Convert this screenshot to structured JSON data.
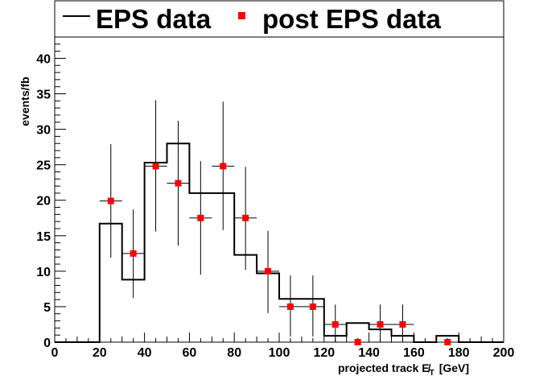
{
  "chart_data": {
    "type": "histogram",
    "xlabel": "projected track  E̸",
    "xlabel_sub": "T",
    "xlabel_unit": "[GeV]",
    "ylabel": "events/fb",
    "xlim": [
      0,
      200
    ],
    "ylim": [
      0,
      43
    ],
    "xticks": [
      "0",
      "20",
      "40",
      "60",
      "80",
      "100",
      "120",
      "140",
      "160",
      "180",
      "200"
    ],
    "yticks": [
      "0",
      "5",
      "10",
      "15",
      "20",
      "25",
      "30",
      "35",
      "40"
    ],
    "grid": false,
    "legend": {
      "position": "top",
      "entries": [
        {
          "label": "EPS data",
          "style": "line"
        },
        {
          "label": "post EPS data",
          "style": "marker"
        }
      ]
    },
    "series": [
      {
        "name": "EPS data",
        "style": "step",
        "color": "#000000",
        "bin_edges": [
          0,
          10,
          20,
          30,
          40,
          50,
          60,
          70,
          80,
          90,
          100,
          110,
          120,
          130,
          140,
          150,
          160,
          170,
          180,
          190,
          200
        ],
        "values": [
          0,
          0,
          16.7,
          8.8,
          25.3,
          28.0,
          21.0,
          21.0,
          12.3,
          9.7,
          6.1,
          6.1,
          0.9,
          2.7,
          1.8,
          0.9,
          0,
          0.9,
          0,
          0
        ]
      },
      {
        "name": "post EPS data",
        "style": "points",
        "color": "#ff0000",
        "points": [
          {
            "x": 25,
            "y": 19.9,
            "ylo": 11.9,
            "yhi": 27.9
          },
          {
            "x": 35,
            "y": 12.5,
            "ylo": 6.2,
            "yhi": 18.7
          },
          {
            "x": 45,
            "y": 24.8,
            "ylo": 15.6,
            "yhi": 34.1
          },
          {
            "x": 55,
            "y": 22.4,
            "ylo": 13.6,
            "yhi": 31.2
          },
          {
            "x": 65,
            "y": 17.5,
            "ylo": 9.5,
            "yhi": 25.5
          },
          {
            "x": 75,
            "y": 24.8,
            "ylo": 15.8,
            "yhi": 33.9
          },
          {
            "x": 85,
            "y": 17.5,
            "ylo": 10.2,
            "yhi": 24.7
          },
          {
            "x": 95,
            "y": 10.0,
            "ylo": 4.1,
            "yhi": 15.7
          },
          {
            "x": 105,
            "y": 5.0,
            "ylo": 0.8,
            "yhi": 9.4
          },
          {
            "x": 115,
            "y": 5.0,
            "ylo": 0.8,
            "yhi": 9.4
          },
          {
            "x": 125,
            "y": 2.5,
            "ylo": 0,
            "yhi": 5.3
          },
          {
            "x": 135,
            "y": 0,
            "ylo": 0,
            "yhi": 0
          },
          {
            "x": 145,
            "y": 2.5,
            "ylo": 0,
            "yhi": 5.3
          },
          {
            "x": 155,
            "y": 2.5,
            "ylo": 0,
            "yhi": 5.3
          },
          {
            "x": 175,
            "y": 0,
            "ylo": 0,
            "yhi": 0
          }
        ]
      }
    ]
  }
}
